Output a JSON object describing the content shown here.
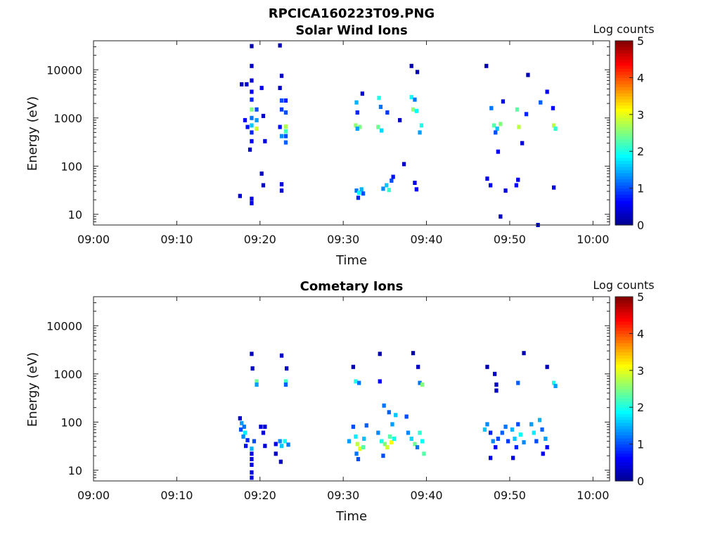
{
  "figure_title": "RPCICA160223T09.PNG",
  "colorbar_title": "Log counts",
  "colormap": [
    "#00008f",
    "#0000ff",
    "#0080ff",
    "#00ffff",
    "#80ff80",
    "#ffff00",
    "#ff8000",
    "#ff0000",
    "#800000"
  ],
  "chart_data": [
    {
      "type": "heatmap",
      "title": "Solar Wind Ions",
      "xlabel": "Time",
      "ylabel": "Energy (eV)",
      "y_scale": "log",
      "xlim": [
        "09:00",
        "10:02"
      ],
      "ylim": [
        6,
        40000
      ],
      "x_ticks": [
        "09:00",
        "09:10",
        "09:20",
        "09:30",
        "09:40",
        "09:50",
        "10:00"
      ],
      "y_ticks": [
        "10",
        "100",
        "1000",
        "10000"
      ],
      "colorbar": {
        "label": "Log counts",
        "range": [
          0,
          5
        ],
        "ticks": [
          "0",
          "1",
          "2",
          "3",
          "4",
          "5"
        ]
      },
      "cells": [
        {
          "t": 17.8,
          "e": 5000,
          "v": 0.3
        },
        {
          "t": 18.4,
          "e": 5000,
          "v": 0.3
        },
        {
          "t": 19.0,
          "e": 31000,
          "v": 0.2
        },
        {
          "t": 19.0,
          "e": 12000,
          "v": 0.3
        },
        {
          "t": 19.0,
          "e": 6000,
          "v": 0.4
        },
        {
          "t": 19.0,
          "e": 3500,
          "v": 0.6
        },
        {
          "t": 19.0,
          "e": 2400,
          "v": 0.8
        },
        {
          "t": 19.0,
          "e": 1500,
          "v": 2.5
        },
        {
          "t": 19.0,
          "e": 1000,
          "v": 1.2
        },
        {
          "t": 19.0,
          "e": 700,
          "v": 1.6
        },
        {
          "t": 19.0,
          "e": 500,
          "v": 0.8
        },
        {
          "t": 19.0,
          "e": 330,
          "v": 0.6
        },
        {
          "t": 19.6,
          "e": 1500,
          "v": 1.0
        },
        {
          "t": 19.6,
          "e": 600,
          "v": 2.9
        },
        {
          "t": 19.6,
          "e": 900,
          "v": 1.4
        },
        {
          "t": 19.0,
          "e": 21,
          "v": 0.5
        },
        {
          "t": 19.0,
          "e": 17,
          "v": 0.5
        },
        {
          "t": 17.6,
          "e": 24,
          "v": 0.4
        },
        {
          "t": 18.2,
          "e": 900,
          "v": 0.6
        },
        {
          "t": 18.5,
          "e": 650,
          "v": 0.7
        },
        {
          "t": 18.8,
          "e": 220,
          "v": 0.3
        },
        {
          "t": 20.2,
          "e": 4200,
          "v": 0.5
        },
        {
          "t": 20.2,
          "e": 70,
          "v": 0.3
        },
        {
          "t": 20.4,
          "e": 40,
          "v": 0.3
        },
        {
          "t": 20.6,
          "e": 330,
          "v": 0.5
        },
        {
          "t": 20.4,
          "e": 1100,
          "v": 0.3
        },
        {
          "t": 22.4,
          "e": 32000,
          "v": 0.2
        },
        {
          "t": 22.6,
          "e": 7500,
          "v": 0.3
        },
        {
          "t": 22.4,
          "e": 4200,
          "v": 0.3
        },
        {
          "t": 22.6,
          "e": 2300,
          "v": 1.0
        },
        {
          "t": 22.6,
          "e": 1500,
          "v": 0.9
        },
        {
          "t": 23.1,
          "e": 2300,
          "v": 0.8
        },
        {
          "t": 23.1,
          "e": 1300,
          "v": 1.0
        },
        {
          "t": 22.4,
          "e": 650,
          "v": 0.7
        },
        {
          "t": 22.6,
          "e": 420,
          "v": 1.3
        },
        {
          "t": 23.1,
          "e": 660,
          "v": 2.7
        },
        {
          "t": 23.1,
          "e": 530,
          "v": 2.2
        },
        {
          "t": 23.1,
          "e": 420,
          "v": 1.0
        },
        {
          "t": 23.1,
          "e": 310,
          "v": 1.1
        },
        {
          "t": 22.6,
          "e": 42,
          "v": 0.4
        },
        {
          "t": 22.6,
          "e": 31,
          "v": 0.4
        },
        {
          "t": 31.5,
          "e": 700,
          "v": 2.6
        },
        {
          "t": 32.0,
          "e": 650,
          "v": 2.5
        },
        {
          "t": 31.7,
          "e": 600,
          "v": 1.4
        },
        {
          "t": 31.6,
          "e": 2100,
          "v": 1.5
        },
        {
          "t": 31.7,
          "e": 1300,
          "v": 0.8
        },
        {
          "t": 32.3,
          "e": 3200,
          "v": 0.4
        },
        {
          "t": 31.6,
          "e": 31,
          "v": 1.2
        },
        {
          "t": 31.9,
          "e": 28,
          "v": 1.9
        },
        {
          "t": 32.2,
          "e": 33,
          "v": 1.5
        },
        {
          "t": 32.4,
          "e": 27,
          "v": 1.0
        },
        {
          "t": 31.8,
          "e": 22,
          "v": 0.8
        },
        {
          "t": 34.3,
          "e": 2600,
          "v": 2.0
        },
        {
          "t": 34.5,
          "e": 1700,
          "v": 1.2
        },
        {
          "t": 34.2,
          "e": 650,
          "v": 2.4
        },
        {
          "t": 34.6,
          "e": 550,
          "v": 1.7
        },
        {
          "t": 34.8,
          "e": 34,
          "v": 1.3
        },
        {
          "t": 35.2,
          "e": 40,
          "v": 1.6
        },
        {
          "t": 35.5,
          "e": 32,
          "v": 2.1
        },
        {
          "t": 35.8,
          "e": 50,
          "v": 1.0
        },
        {
          "t": 36.0,
          "e": 60,
          "v": 0.7
        },
        {
          "t": 35.3,
          "e": 1300,
          "v": 0.9
        },
        {
          "t": 38.2,
          "e": 2700,
          "v": 1.9
        },
        {
          "t": 38.6,
          "e": 2400,
          "v": 1.2
        },
        {
          "t": 38.4,
          "e": 1500,
          "v": 2.6
        },
        {
          "t": 38.8,
          "e": 1400,
          "v": 1.9
        },
        {
          "t": 39.4,
          "e": 700,
          "v": 2.0
        },
        {
          "t": 39.2,
          "e": 500,
          "v": 1.4
        },
        {
          "t": 38.8,
          "e": 33,
          "v": 0.6
        },
        {
          "t": 38.6,
          "e": 45,
          "v": 0.5
        },
        {
          "t": 38.2,
          "e": 12000,
          "v": 0.2
        },
        {
          "t": 38.9,
          "e": 9000,
          "v": 0.2
        },
        {
          "t": 36.8,
          "e": 900,
          "v": 0.3
        },
        {
          "t": 37.3,
          "e": 110,
          "v": 0.3
        },
        {
          "t": 47.2,
          "e": 12000,
          "v": 0.2
        },
        {
          "t": 47.8,
          "e": 1600,
          "v": 1.2
        },
        {
          "t": 48.1,
          "e": 700,
          "v": 2.3
        },
        {
          "t": 48.5,
          "e": 600,
          "v": 1.6
        },
        {
          "t": 48.9,
          "e": 750,
          "v": 2.5
        },
        {
          "t": 48.3,
          "e": 500,
          "v": 1.0
        },
        {
          "t": 49.2,
          "e": 2200,
          "v": 0.6
        },
        {
          "t": 48.6,
          "e": 200,
          "v": 0.5
        },
        {
          "t": 47.3,
          "e": 55,
          "v": 0.5
        },
        {
          "t": 47.7,
          "e": 40,
          "v": 0.6
        },
        {
          "t": 48.9,
          "e": 9,
          "v": 0.3
        },
        {
          "t": 49.5,
          "e": 31,
          "v": 0.4
        },
        {
          "t": 50.9,
          "e": 1500,
          "v": 2.3
        },
        {
          "t": 51.1,
          "e": 650,
          "v": 2.8
        },
        {
          "t": 52.0,
          "e": 1200,
          "v": 0.8
        },
        {
          "t": 51.5,
          "e": 300,
          "v": 0.4
        },
        {
          "t": 50.8,
          "e": 40,
          "v": 0.6
        },
        {
          "t": 51.0,
          "e": 52,
          "v": 0.5
        },
        {
          "t": 52.2,
          "e": 7800,
          "v": 0.2
        },
        {
          "t": 53.7,
          "e": 2100,
          "v": 1.1
        },
        {
          "t": 55.3,
          "e": 700,
          "v": 2.8
        },
        {
          "t": 55.5,
          "e": 600,
          "v": 2.1
        },
        {
          "t": 54.5,
          "e": 3500,
          "v": 0.5
        },
        {
          "t": 55.2,
          "e": 1600,
          "v": 0.6
        },
        {
          "t": 55.3,
          "e": 36,
          "v": 0.5
        },
        {
          "t": 53.4,
          "e": 6,
          "v": 0.3
        }
      ]
    },
    {
      "type": "heatmap",
      "title": "Cometary Ions",
      "xlabel": "Time",
      "ylabel": "Energy (eV)",
      "y_scale": "log",
      "xlim": [
        "09:00",
        "10:02"
      ],
      "ylim": [
        6,
        40000
      ],
      "x_ticks": [
        "09:00",
        "09:10",
        "09:20",
        "09:30",
        "09:40",
        "09:50",
        "10:00"
      ],
      "y_ticks": [
        "10",
        "100",
        "1000",
        "10000"
      ],
      "colorbar": {
        "label": "Log counts",
        "range": [
          0,
          5
        ],
        "ticks": [
          "0",
          "1",
          "2",
          "3",
          "4",
          "5"
        ]
      },
      "cells": [
        {
          "t": 19.0,
          "e": 2600,
          "v": 0.3
        },
        {
          "t": 19.1,
          "e": 1300,
          "v": 0.3
        },
        {
          "t": 19.6,
          "e": 700,
          "v": 2.4
        },
        {
          "t": 19.6,
          "e": 600,
          "v": 1.4
        },
        {
          "t": 22.6,
          "e": 2400,
          "v": 0.3
        },
        {
          "t": 23.2,
          "e": 1300,
          "v": 0.3
        },
        {
          "t": 23.1,
          "e": 700,
          "v": 2.2
        },
        {
          "t": 23.1,
          "e": 600,
          "v": 1.1
        },
        {
          "t": 17.6,
          "e": 120,
          "v": 0.4
        },
        {
          "t": 17.8,
          "e": 95,
          "v": 1.4
        },
        {
          "t": 18.1,
          "e": 80,
          "v": 1.2
        },
        {
          "t": 17.7,
          "e": 70,
          "v": 1.0
        },
        {
          "t": 18.2,
          "e": 60,
          "v": 1.8
        },
        {
          "t": 18.0,
          "e": 50,
          "v": 1.3
        },
        {
          "t": 18.5,
          "e": 42,
          "v": 0.8
        },
        {
          "t": 18.3,
          "e": 32,
          "v": 0.7
        },
        {
          "t": 19.3,
          "e": 40,
          "v": 1.0
        },
        {
          "t": 19.0,
          "e": 28,
          "v": 1.5
        },
        {
          "t": 19.0,
          "e": 22,
          "v": 0.5
        },
        {
          "t": 19.0,
          "e": 17,
          "v": 0.5
        },
        {
          "t": 19.0,
          "e": 13,
          "v": 0.5
        },
        {
          "t": 19.0,
          "e": 9,
          "v": 0.5
        },
        {
          "t": 19.0,
          "e": 7,
          "v": 0.5
        },
        {
          "t": 20.1,
          "e": 80,
          "v": 0.4
        },
        {
          "t": 20.6,
          "e": 80,
          "v": 0.4
        },
        {
          "t": 20.4,
          "e": 60,
          "v": 0.4
        },
        {
          "t": 20.6,
          "e": 32,
          "v": 0.4
        },
        {
          "t": 22.4,
          "e": 40,
          "v": 1.3
        },
        {
          "t": 22.6,
          "e": 32,
          "v": 1.6
        },
        {
          "t": 23.0,
          "e": 40,
          "v": 1.9
        },
        {
          "t": 23.4,
          "e": 34,
          "v": 1.2
        },
        {
          "t": 21.9,
          "e": 35,
          "v": 0.5
        },
        {
          "t": 21.9,
          "e": 22,
          "v": 0.3
        },
        {
          "t": 22.5,
          "e": 15,
          "v": 0.3
        },
        {
          "t": 31.2,
          "e": 1400,
          "v": 0.2
        },
        {
          "t": 31.5,
          "e": 700,
          "v": 2.0
        },
        {
          "t": 31.9,
          "e": 650,
          "v": 1.2
        },
        {
          "t": 34.4,
          "e": 700,
          "v": 0.6
        },
        {
          "t": 34.4,
          "e": 2600,
          "v": 0.2
        },
        {
          "t": 38.4,
          "e": 2700,
          "v": 0.2
        },
        {
          "t": 39.0,
          "e": 1400,
          "v": 0.3
        },
        {
          "t": 39.2,
          "e": 650,
          "v": 1.2
        },
        {
          "t": 39.5,
          "e": 600,
          "v": 2.5
        },
        {
          "t": 30.7,
          "e": 40,
          "v": 1.4
        },
        {
          "t": 31.2,
          "e": 80,
          "v": 1.0
        },
        {
          "t": 31.5,
          "e": 50,
          "v": 1.8
        },
        {
          "t": 31.7,
          "e": 35,
          "v": 2.8
        },
        {
          "t": 32.0,
          "e": 28,
          "v": 3.0
        },
        {
          "t": 32.4,
          "e": 30,
          "v": 2.3
        },
        {
          "t": 32.5,
          "e": 45,
          "v": 1.6
        },
        {
          "t": 32.8,
          "e": 85,
          "v": 1.1
        },
        {
          "t": 31.6,
          "e": 22,
          "v": 1.2
        },
        {
          "t": 31.8,
          "e": 17,
          "v": 1.0
        },
        {
          "t": 34.2,
          "e": 60,
          "v": 1.3
        },
        {
          "t": 34.6,
          "e": 40,
          "v": 2.0
        },
        {
          "t": 35.0,
          "e": 35,
          "v": 2.5
        },
        {
          "t": 35.3,
          "e": 30,
          "v": 2.9
        },
        {
          "t": 35.6,
          "e": 50,
          "v": 2.3
        },
        {
          "t": 35.8,
          "e": 38,
          "v": 3.1
        },
        {
          "t": 36.1,
          "e": 45,
          "v": 2.0
        },
        {
          "t": 35.9,
          "e": 90,
          "v": 1.4
        },
        {
          "t": 34.9,
          "e": 220,
          "v": 1.2
        },
        {
          "t": 35.5,
          "e": 160,
          "v": 1.1
        },
        {
          "t": 36.3,
          "e": 140,
          "v": 1.6
        },
        {
          "t": 34.8,
          "e": 20,
          "v": 1.0
        },
        {
          "t": 37.8,
          "e": 60,
          "v": 1.3
        },
        {
          "t": 38.2,
          "e": 45,
          "v": 1.7
        },
        {
          "t": 38.6,
          "e": 35,
          "v": 2.4
        },
        {
          "t": 38.9,
          "e": 30,
          "v": 1.2
        },
        {
          "t": 39.2,
          "e": 60,
          "v": 2.1
        },
        {
          "t": 39.5,
          "e": 40,
          "v": 1.9
        },
        {
          "t": 39.7,
          "e": 22,
          "v": 2.3
        },
        {
          "t": 37.6,
          "e": 130,
          "v": 1.0
        },
        {
          "t": 47.0,
          "e": 70,
          "v": 1.6
        },
        {
          "t": 47.3,
          "e": 90,
          "v": 1.3
        },
        {
          "t": 47.7,
          "e": 60,
          "v": 0.8
        },
        {
          "t": 48.0,
          "e": 40,
          "v": 1.3
        },
        {
          "t": 48.3,
          "e": 30,
          "v": 0.6
        },
        {
          "t": 48.6,
          "e": 45,
          "v": 1.0
        },
        {
          "t": 47.7,
          "e": 18,
          "v": 0.5
        },
        {
          "t": 49.1,
          "e": 60,
          "v": 1.1
        },
        {
          "t": 49.5,
          "e": 80,
          "v": 1.2
        },
        {
          "t": 49.8,
          "e": 40,
          "v": 0.9
        },
        {
          "t": 50.3,
          "e": 70,
          "v": 1.5
        },
        {
          "t": 50.6,
          "e": 45,
          "v": 1.6
        },
        {
          "t": 50.8,
          "e": 30,
          "v": 0.8
        },
        {
          "t": 50.4,
          "e": 18,
          "v": 0.5
        },
        {
          "t": 51.0,
          "e": 90,
          "v": 1.0
        },
        {
          "t": 51.3,
          "e": 55,
          "v": 1.9
        },
        {
          "t": 51.7,
          "e": 38,
          "v": 1.3
        },
        {
          "t": 52.6,
          "e": 90,
          "v": 1.4
        },
        {
          "t": 52.9,
          "e": 60,
          "v": 1.8
        },
        {
          "t": 53.2,
          "e": 40,
          "v": 1.0
        },
        {
          "t": 53.6,
          "e": 110,
          "v": 1.5
        },
        {
          "t": 53.9,
          "e": 70,
          "v": 1.1
        },
        {
          "t": 54.3,
          "e": 45,
          "v": 1.4
        },
        {
          "t": 54.5,
          "e": 30,
          "v": 0.6
        },
        {
          "t": 54.0,
          "e": 22,
          "v": 0.5
        },
        {
          "t": 47.3,
          "e": 1400,
          "v": 0.2
        },
        {
          "t": 48.2,
          "e": 1000,
          "v": 0.3
        },
        {
          "t": 48.4,
          "e": 600,
          "v": 0.3
        },
        {
          "t": 48.4,
          "e": 450,
          "v": 0.3
        },
        {
          "t": 51.0,
          "e": 650,
          "v": 1.1
        },
        {
          "t": 51.7,
          "e": 2700,
          "v": 0.2
        },
        {
          "t": 54.5,
          "e": 1400,
          "v": 0.2
        },
        {
          "t": 55.3,
          "e": 650,
          "v": 2.0
        },
        {
          "t": 55.5,
          "e": 560,
          "v": 1.4
        }
      ]
    }
  ]
}
